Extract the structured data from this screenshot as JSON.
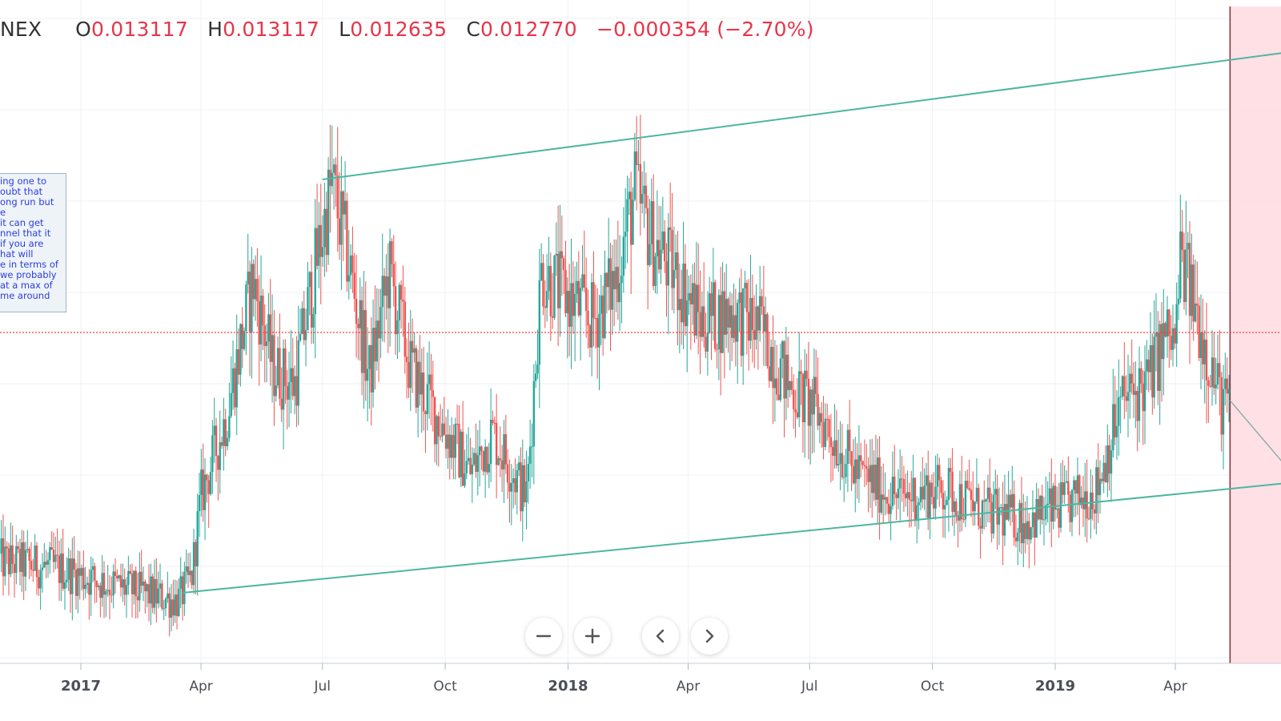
{
  "header": {
    "symbol": "NEX",
    "open_label": "O",
    "open": "0.013117",
    "high_label": "H",
    "high": "0.013117",
    "low_label": "L",
    "low": "0.012635",
    "close_label": "C",
    "close": "0.012770",
    "change": "−0.000354 (−2.70%)"
  },
  "note_lines": [
    "ing one to",
    "oubt that",
    "ong run but",
    "e",
    " it can get",
    "nnel that it",
    "if you are",
    "hat will",
    "e in terms of",
    "we probably",
    "at a max of",
    "me around"
  ],
  "controls": {
    "zoom_out": "−",
    "zoom_in": "+",
    "scroll_left": "‹",
    "scroll_right": "›"
  },
  "colors": {
    "up": "#26a69a",
    "down": "#ef5350",
    "trendline": "#4db6a1",
    "price_line": "#f44336",
    "highlight": "#ffdde2"
  },
  "chart_data": {
    "type": "candlestick",
    "x_tick_labels": [
      "2017",
      "Apr",
      "Jul",
      "Oct",
      "2018",
      "Apr",
      "Jul",
      "Oct",
      "2019",
      "Apr"
    ],
    "x_tick_dates": [
      "2017-01",
      "2017-04",
      "2017-07",
      "2017-10",
      "2018-01",
      "2018-04",
      "2018-07",
      "2018-10",
      "2019-01",
      "2019-04"
    ],
    "last_close": 0.01277,
    "trend_path": [
      [
        "2016-11-01",
        10.0
      ],
      [
        "2016-12-15",
        9.5
      ],
      [
        "2017-01-20",
        8.6
      ],
      [
        "2017-02-20",
        7.9
      ],
      [
        "2017-03-15",
        7.5
      ],
      [
        "2017-03-25",
        9.0
      ],
      [
        "2017-04-01",
        14.0
      ],
      [
        "2017-04-20",
        19.0
      ],
      [
        "2017-05-10",
        27.5
      ],
      [
        "2017-05-25",
        22.0
      ],
      [
        "2017-06-10",
        21.0
      ],
      [
        "2017-06-25",
        28.0
      ],
      [
        "2017-07-08",
        33.5
      ],
      [
        "2017-07-20",
        29.0
      ],
      [
        "2017-08-05",
        21.5
      ],
      [
        "2017-08-20",
        28.0
      ],
      [
        "2017-09-05",
        22.0
      ],
      [
        "2017-09-25",
        19.0
      ],
      [
        "2017-10-20",
        15.5
      ],
      [
        "2017-11-05",
        18.0
      ],
      [
        "2017-12-01",
        14.0
      ],
      [
        "2017-12-12",
        28.0
      ],
      [
        "2017-12-25",
        27.0
      ],
      [
        "2018-01-20",
        25.0
      ],
      [
        "2018-02-05",
        27.5
      ],
      [
        "2018-02-20",
        33.0
      ],
      [
        "2018-03-05",
        30.0
      ],
      [
        "2018-03-25",
        27.5
      ],
      [
        "2018-04-10",
        25.0
      ],
      [
        "2018-05-05",
        25.5
      ],
      [
        "2018-05-25",
        24.5
      ],
      [
        "2018-06-15",
        21.0
      ],
      [
        "2018-07-05",
        19.5
      ],
      [
        "2018-08-05",
        15.5
      ],
      [
        "2018-09-05",
        14.0
      ],
      [
        "2018-10-10",
        14.5
      ],
      [
        "2018-11-10",
        13.0
      ],
      [
        "2018-12-10",
        12.5
      ],
      [
        "2019-01-10",
        13.5
      ],
      [
        "2019-02-01",
        14.5
      ],
      [
        "2019-02-20",
        20.0
      ],
      [
        "2019-03-10",
        21.0
      ],
      [
        "2019-03-25",
        24.0
      ],
      [
        "2019-04-01",
        23.5
      ],
      [
        "2019-04-05",
        29.0
      ],
      [
        "2019-04-20",
        24.5
      ],
      [
        "2019-05-05",
        20.0
      ],
      [
        "2019-05-12",
        19.5
      ]
    ],
    "upper_channel": [
      [
        "2017-07-01",
        33.8
      ],
      [
        "2019-06-30",
        41.8
      ]
    ],
    "lower_channel": [
      [
        "2017-03-18",
        8.0
      ],
      [
        "2019-06-30",
        14.9
      ]
    ],
    "forecast_line": [
      [
        "2019-05-12",
        20.0
      ],
      [
        "2019-06-30",
        15.2
      ]
    ],
    "highlight_from": "2019-05-12"
  }
}
